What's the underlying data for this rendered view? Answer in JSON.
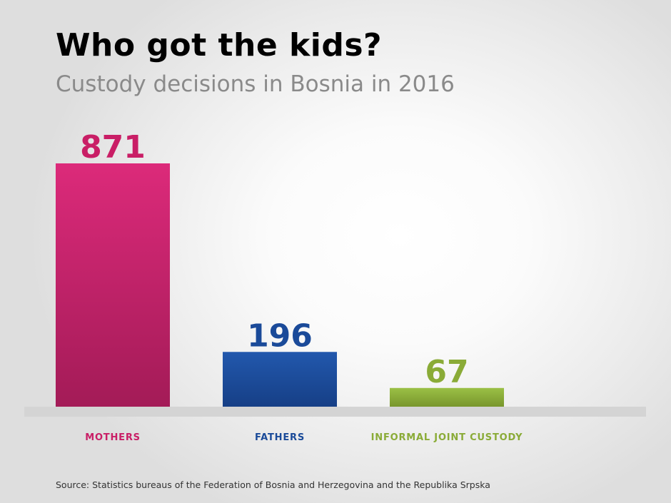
{
  "chart": {
    "title": "Who got the kids?",
    "subtitle": "Custody decisions in Bosnia in 2016",
    "source": "Source: Statistics bureaus of the Federation of Bosnia and Herzegovina and the Republika Srpska"
  },
  "chart_data": {
    "type": "bar",
    "categories": [
      "MOTHERS",
      "FATHERS",
      "INFORMAL JOINT CUSTODY"
    ],
    "values": [
      871,
      196,
      67
    ],
    "value_labels": [
      "871",
      "196",
      "67"
    ],
    "colors": [
      "#c91e66",
      "#1a4a99",
      "#8aab37"
    ],
    "ylim": [
      0,
      871
    ],
    "grid": false,
    "legend": "none",
    "xlabel": "",
    "ylabel": ""
  }
}
